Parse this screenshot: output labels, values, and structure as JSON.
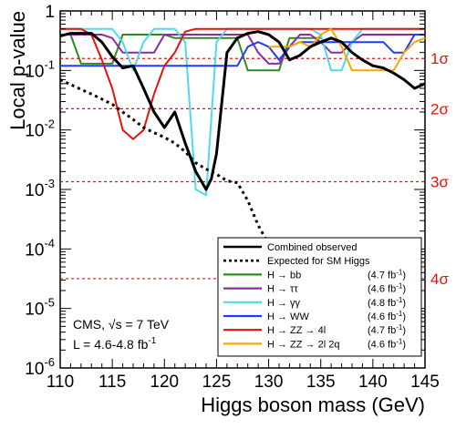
{
  "chart_data": {
    "type": "line",
    "xlabel": "Higgs boson mass (GeV)",
    "ylabel": "Local p-value",
    "xlim": [
      110,
      145
    ],
    "ylim": [
      1e-06,
      1
    ],
    "yscale": "log",
    "grid": false,
    "legend_placement": "bottom-right",
    "x_ticks": [
      "110",
      "115",
      "120",
      "125",
      "130",
      "135",
      "140",
      "145"
    ],
    "y_ticks": [
      {
        "base": "1",
        "exp": ""
      },
      {
        "base": "10",
        "exp": "-1"
      },
      {
        "base": "10",
        "exp": "-2"
      },
      {
        "base": "10",
        "exp": "-3"
      },
      {
        "base": "10",
        "exp": "-4"
      },
      {
        "base": "10",
        "exp": "-5"
      },
      {
        "base": "10",
        "exp": "-6"
      }
    ],
    "sigma_lines": [
      {
        "label": "1σ",
        "p": 0.1587
      },
      {
        "label": "2σ",
        "p": 0.02275
      },
      {
        "label": "3σ",
        "p": 0.00135
      },
      {
        "label": "4σ",
        "p": 3.17e-05
      }
    ],
    "annotation": {
      "line1": "CMS, √s = 7 TeV",
      "line2_prefix": "L = 4.6-4.8 fb",
      "line2_sup": "-1"
    },
    "series": [
      {
        "name": "Combined observed",
        "color": "#000000",
        "dash": false,
        "x": [
          110,
          111,
          113,
          114,
          115,
          116,
          117,
          118,
          119,
          120,
          121,
          122,
          123,
          124,
          124.5,
          125,
          126,
          127,
          128,
          129,
          130,
          131,
          132,
          133,
          134,
          135,
          136,
          137,
          138,
          139,
          140,
          141,
          142,
          143,
          144,
          145
        ],
        "y": [
          0.38,
          0.42,
          0.42,
          0.3,
          0.17,
          0.11,
          0.12,
          0.05,
          0.02,
          0.011,
          0.02,
          0.006,
          0.002,
          0.001,
          0.0015,
          0.004,
          0.2,
          0.35,
          0.42,
          0.45,
          0.4,
          0.3,
          0.15,
          0.18,
          0.25,
          0.3,
          0.35,
          0.3,
          0.2,
          0.15,
          0.12,
          0.11,
          0.09,
          0.07,
          0.05,
          0.06
        ]
      },
      {
        "name": "Expected for SM Higgs",
        "color": "#000000",
        "dash": true,
        "x": [
          110,
          111,
          112,
          113,
          114,
          115,
          116,
          117,
          118,
          119,
          120,
          121,
          122,
          123,
          124,
          125,
          126,
          127,
          128,
          129,
          130,
          131,
          132,
          133,
          134
        ],
        "y": [
          0.07,
          0.058,
          0.048,
          0.04,
          0.033,
          0.027,
          0.02,
          0.015,
          0.011,
          0.009,
          0.0075,
          0.006,
          0.0043,
          0.0028,
          0.0022,
          0.0018,
          0.0014,
          0.0013,
          0.00065,
          0.00025,
          0.00012,
          6e-05,
          4e-05,
          2e-05,
          1.2e-05
        ]
      },
      {
        "name": "H → bb",
        "lumi": "(4.7 fb",
        "lumi_sup": "-1",
        "lumi_end": ")",
        "color": "#2e8b22",
        "dash": false,
        "x": [
          110,
          111,
          112,
          113,
          114,
          115,
          116,
          117,
          118,
          119,
          120,
          121,
          122,
          123,
          124,
          125,
          126,
          127,
          128,
          129,
          130,
          131,
          132,
          133,
          134,
          135
        ],
        "y": [
          0.4,
          0.4,
          0.13,
          0.13,
          0.13,
          0.13,
          0.4,
          0.4,
          0.4,
          0.4,
          0.4,
          0.35,
          0.35,
          0.35,
          0.35,
          0.35,
          0.35,
          0.35,
          0.1,
          0.1,
          0.1,
          0.1,
          0.35,
          0.35,
          0.35,
          0.35
        ]
      },
      {
        "name": "H → ττ",
        "lumi": "(4.6 fb",
        "lumi_sup": "-1",
        "lumi_end": ")",
        "color": "#8a2aa8",
        "dash": false,
        "x": [
          110,
          111,
          112,
          113,
          114,
          115,
          116,
          117,
          118,
          119,
          120,
          121,
          122,
          123,
          124,
          125,
          126,
          127,
          128,
          129,
          130,
          131,
          132,
          133,
          134,
          135,
          136,
          137,
          138,
          139,
          140,
          141,
          142,
          143,
          144,
          145
        ],
        "y": [
          0.4,
          0.4,
          0.4,
          0.4,
          0.4,
          0.35,
          0.2,
          0.2,
          0.2,
          0.2,
          0.4,
          0.4,
          0.4,
          0.4,
          0.4,
          0.4,
          0.4,
          0.4,
          0.4,
          0.2,
          0.13,
          0.13,
          0.25,
          0.4,
          0.4,
          0.3,
          0.2,
          0.2,
          0.3,
          0.4,
          0.4,
          0.4,
          0.4,
          0.4,
          0.4,
          0.4
        ]
      },
      {
        "name": "H → γγ",
        "lumi": "(4.8 fb",
        "lumi_sup": "-1",
        "lumi_end": ")",
        "color": "#4fd8f0",
        "dash": false,
        "x": [
          110,
          111,
          112,
          113,
          114,
          115,
          116,
          117,
          118,
          119,
          120,
          121,
          122,
          123,
          124,
          125,
          126,
          127,
          128,
          129,
          130,
          131,
          132,
          133,
          134,
          135,
          136,
          137,
          138,
          139,
          140,
          141,
          142,
          143,
          144,
          145
        ],
        "y": [
          0.5,
          0.5,
          0.5,
          0.5,
          0.5,
          0.5,
          0.3,
          0.1,
          0.3,
          0.5,
          0.5,
          0.5,
          0.3,
          0.001,
          0.0008,
          0.3,
          0.5,
          0.5,
          0.5,
          0.5,
          0.5,
          0.5,
          0.5,
          0.5,
          0.5,
          0.4,
          0.1,
          0.1,
          0.3,
          0.5,
          0.5,
          0.5,
          0.5,
          0.5,
          0.5,
          0.5
        ]
      },
      {
        "name": "H → WW",
        "lumi": "(4.6 fb",
        "lumi_sup": "-1",
        "lumi_end": ")",
        "color": "#1f3cff",
        "dash": false,
        "x": [
          110,
          111,
          112,
          113,
          114,
          115,
          116,
          117,
          118,
          119,
          120,
          121,
          122,
          123,
          124,
          125,
          126,
          127,
          128,
          129,
          130,
          131,
          132,
          133,
          134,
          135,
          136,
          137,
          138,
          139,
          140,
          141,
          142,
          143,
          144,
          145
        ],
        "y": [
          0.12,
          0.12,
          0.12,
          0.12,
          0.12,
          0.12,
          0.12,
          0.12,
          0.12,
          0.12,
          0.12,
          0.12,
          0.12,
          0.12,
          0.12,
          0.12,
          0.12,
          0.12,
          0.25,
          0.3,
          0.25,
          0.15,
          0.25,
          0.3,
          0.3,
          0.3,
          0.3,
          0.3,
          0.3,
          0.3,
          0.3,
          0.3,
          0.2,
          0.2,
          0.4,
          0.4
        ]
      },
      {
        "name": "H → ZZ → 4l",
        "lumi": "(4.7 fb",
        "lumi_sup": "-1",
        "lumi_end": ")",
        "color": "#e8100a",
        "dash": false,
        "x": [
          110,
          111,
          112,
          113,
          114,
          115,
          116,
          117,
          118,
          119,
          120,
          121,
          122,
          123,
          124,
          125,
          126,
          127,
          128,
          129,
          130,
          131,
          132,
          133,
          134,
          135,
          136,
          137,
          138,
          139,
          140,
          141,
          142,
          143,
          144,
          145
        ],
        "y": [
          0.5,
          0.5,
          0.5,
          0.4,
          0.15,
          0.05,
          0.01,
          0.007,
          0.01,
          0.04,
          0.12,
          0.2,
          0.45,
          0.5,
          0.5,
          0.5,
          0.5,
          0.5,
          0.5,
          0.5,
          0.5,
          0.5,
          0.5,
          0.5,
          0.5,
          0.5,
          0.5,
          0.5,
          0.5,
          0.5,
          0.5,
          0.5,
          0.5,
          0.5,
          0.5,
          0.5
        ]
      },
      {
        "name": "H → ZZ → 2l 2q",
        "lumi": "(4.6 fb",
        "lumi_sup": "-1",
        "lumi_end": ")",
        "color": "#f5a800",
        "dash": false,
        "x": [
          130,
          131,
          132,
          133,
          134,
          135,
          136,
          137,
          138,
          139,
          140,
          141,
          142,
          143,
          144,
          145
        ],
        "y": [
          0.25,
          0.25,
          0.25,
          0.3,
          0.25,
          0.4,
          0.5,
          0.25,
          0.1,
          0.1,
          0.1,
          0.1,
          0.1,
          0.2,
          0.3,
          0.35
        ]
      }
    ]
  }
}
